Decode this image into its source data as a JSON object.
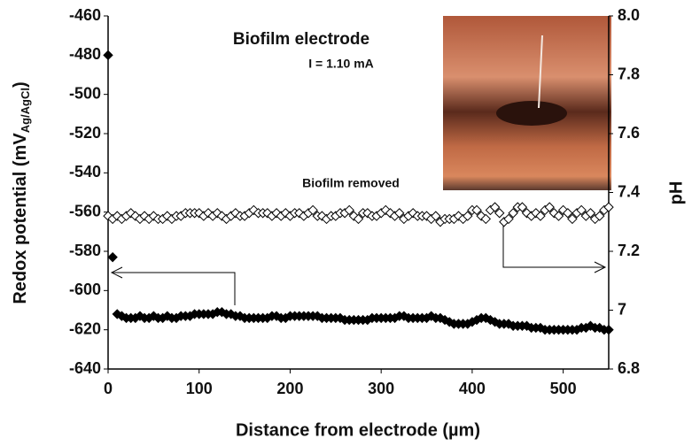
{
  "chart_data": {
    "type": "scatter",
    "x_label": "Distance from electrode (µm)",
    "y_label": "Redox potential (mV",
    "y_label_sub": "Ag/AgCl",
    "y_label_end": ")",
    "y2_label": "pH",
    "annotations": [
      "Biofilm electrode",
      "I = 1.10 mA",
      "Biofilm removed"
    ],
    "xlim": [
      0,
      550
    ],
    "xticks": [
      0,
      100,
      200,
      300,
      400,
      500
    ],
    "ylim": [
      -640,
      -460
    ],
    "yticks": [
      -640,
      -620,
      -600,
      -580,
      -560,
      -540,
      -520,
      -500,
      -480,
      -460
    ],
    "y2lim": [
      6.8,
      8.0
    ],
    "y2ticks": [
      6.8,
      7,
      7.2,
      7.4,
      7.6,
      7.8,
      {
        "value": 8,
        "label": "8.0"
      }
    ],
    "x": [
      0,
      5,
      10,
      15,
      20,
      25,
      30,
      35,
      40,
      45,
      50,
      55,
      60,
      65,
      70,
      75,
      80,
      85,
      90,
      95,
      100,
      105,
      110,
      115,
      120,
      125,
      130,
      135,
      140,
      145,
      150,
      155,
      160,
      165,
      170,
      175,
      180,
      185,
      190,
      195,
      200,
      205,
      210,
      215,
      220,
      225,
      230,
      235,
      240,
      245,
      250,
      255,
      260,
      265,
      270,
      275,
      280,
      285,
      290,
      295,
      300,
      305,
      310,
      315,
      320,
      325,
      330,
      335,
      340,
      345,
      350,
      355,
      360,
      365,
      370,
      375,
      380,
      385,
      390,
      395,
      400,
      405,
      410,
      415,
      420,
      425,
      430,
      435,
      440,
      445,
      450,
      455,
      460,
      465,
      470,
      475,
      480,
      485,
      490,
      495,
      500,
      505,
      510,
      515,
      520,
      525,
      530,
      535,
      540,
      545,
      550
    ],
    "series": [
      {
        "color": "#000000",
        "marker_fill": "#000000",
        "values": [
          -480,
          -583,
          -612,
          -613,
          -614,
          -614,
          -614,
          -613,
          -614,
          -614,
          -613,
          -614,
          -614,
          -613,
          -614,
          -614,
          -613,
          -613,
          -613,
          -612,
          -612,
          -612,
          -612,
          -612,
          -611,
          -611,
          -612,
          -612,
          -613,
          -613,
          -614,
          -614,
          -614,
          -614,
          -614,
          -614,
          -613,
          -613,
          -614,
          -614,
          -613,
          -613,
          -613,
          -613,
          -613,
          -613,
          -613,
          -614,
          -614,
          -614,
          -614,
          -614,
          -615,
          -615,
          -615,
          -615,
          -615,
          -615,
          -614,
          -614,
          -614,
          -614,
          -614,
          -614,
          -613,
          -613,
          -614,
          -614,
          -614,
          -614,
          -614,
          -613,
          -614,
          -614,
          -615,
          -616,
          -617,
          -617,
          -617,
          -617,
          -616,
          -615,
          -614,
          -614,
          -615,
          -616,
          -617,
          -617,
          -617,
          -618,
          -618,
          -618,
          -618,
          -619,
          -619,
          -619,
          -620,
          -620,
          -620,
          -620,
          -620,
          -620,
          -620,
          -620,
          -619,
          -619,
          -618,
          -619,
          -619,
          -620,
          -620
        ]
      },
      {
        "color": "#000000",
        "marker_fill": "#ffffff",
        "axis": "y2",
        "values": [
          7.32,
          7.31,
          7.32,
          7.31,
          7.32,
          7.33,
          7.32,
          7.31,
          7.32,
          7.31,
          7.32,
          7.31,
          7.31,
          7.32,
          7.31,
          7.32,
          7.32,
          7.33,
          7.33,
          7.33,
          7.33,
          7.32,
          7.33,
          7.32,
          7.33,
          7.32,
          7.31,
          7.32,
          7.33,
          7.32,
          7.32,
          7.33,
          7.34,
          7.33,
          7.33,
          7.33,
          7.32,
          7.33,
          7.32,
          7.33,
          7.32,
          7.33,
          7.33,
          7.32,
          7.33,
          7.34,
          7.32,
          7.32,
          7.31,
          7.32,
          7.32,
          7.33,
          7.33,
          7.34,
          7.32,
          7.31,
          7.33,
          7.33,
          7.32,
          7.32,
          7.33,
          7.34,
          7.33,
          7.32,
          7.33,
          7.31,
          7.32,
          7.33,
          7.32,
          7.32,
          7.32,
          7.31,
          7.32,
          7.3,
          7.31,
          7.31,
          7.31,
          7.32,
          7.31,
          7.32,
          7.34,
          7.34,
          7.32,
          7.31,
          7.34,
          7.35,
          7.33,
          7.3,
          7.31,
          7.33,
          7.35,
          7.35,
          7.33,
          7.32,
          7.33,
          7.32,
          7.34,
          7.35,
          7.33,
          7.32,
          7.34,
          7.33,
          7.31,
          7.33,
          7.34,
          7.32,
          7.33,
          7.31,
          7.32,
          7.34,
          7.35
        ]
      }
    ]
  }
}
